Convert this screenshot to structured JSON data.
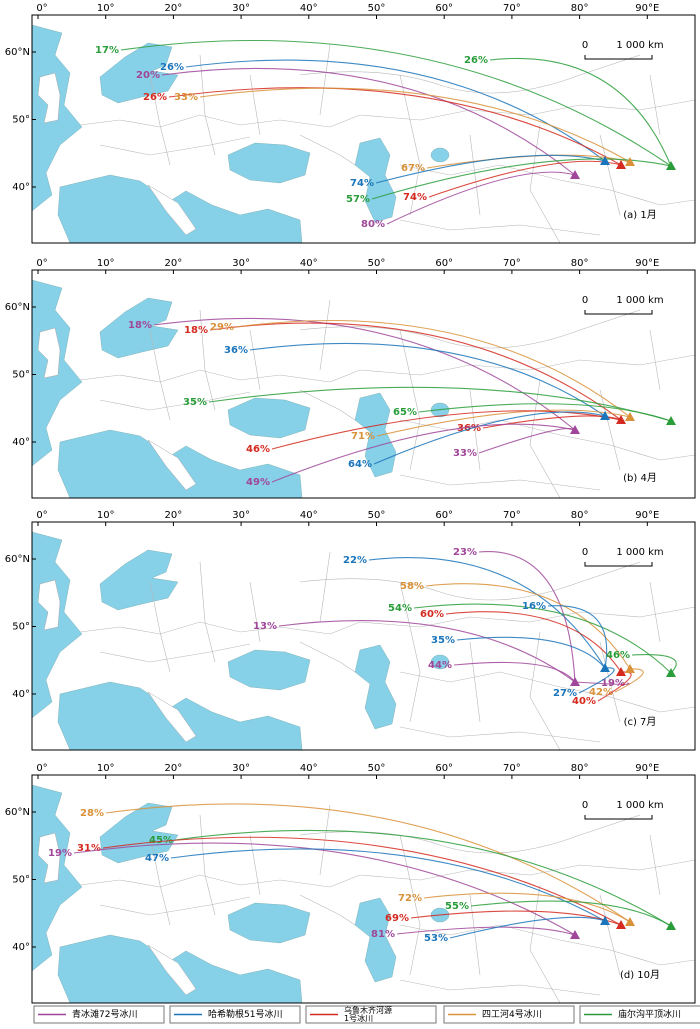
{
  "map": {
    "longitude_labels": [
      "0°",
      "10°",
      "20°",
      "30°",
      "40°",
      "50°",
      "60°",
      "70°",
      "80°",
      "90°E"
    ],
    "latitude_labels": [
      "60°N",
      "50°",
      "40°"
    ],
    "scale_bar": [
      "0",
      "1 000 km"
    ],
    "glaciers": [
      {
        "name": [
          "青冰滩72号冰川"
        ],
        "color": "#a0479a"
      },
      {
        "name": [
          "哈希勒根51号冰川"
        ],
        "color": "#1b75bb"
      },
      {
        "name": [
          "乌鲁木齐河源",
          "1号冰川"
        ],
        "color": "#d42a1f"
      },
      {
        "name": [
          "四工河4号冰川"
        ],
        "color": "#d9923a"
      },
      {
        "name": [
          "庙尔沟平顶冰川"
        ],
        "color": "#2a9d3a"
      }
    ],
    "panels": [
      {
        "label": "(a) 1月",
        "sources": [
          {
            "text": "17%",
            "glacier": 4
          },
          {
            "text": "26%",
            "glacier": 4
          },
          {
            "text": "20%",
            "glacier": 0
          },
          {
            "text": "26%",
            "glacier": 1
          },
          {
            "text": "26%",
            "glacier": 2
          },
          {
            "text": "33%",
            "glacier": 3
          },
          {
            "text": "67%",
            "glacier": 3
          },
          {
            "text": "74%",
            "glacier": 1
          },
          {
            "text": "74%",
            "glacier": 2
          },
          {
            "text": "57%",
            "glacier": 4
          },
          {
            "text": "80%",
            "glacier": 0
          }
        ]
      },
      {
        "label": "(b) 4月",
        "sources": [
          {
            "text": "18%",
            "glacier": 0
          },
          {
            "text": "18%",
            "glacier": 2
          },
          {
            "text": "29%",
            "glacier": 3
          },
          {
            "text": "36%",
            "glacier": 1
          },
          {
            "text": "35%",
            "glacier": 4
          },
          {
            "text": "65%",
            "glacier": 4
          },
          {
            "text": "71%",
            "glacier": 3
          },
          {
            "text": "46%",
            "glacier": 2
          },
          {
            "text": "36%",
            "glacier": 2
          },
          {
            "text": "64%",
            "glacier": 1
          },
          {
            "text": "33%",
            "glacier": 0
          },
          {
            "text": "49%",
            "glacier": 0
          }
        ]
      },
      {
        "label": "(c) 7月",
        "sources": [
          {
            "text": "22%",
            "glacier": 1
          },
          {
            "text": "23%",
            "glacier": 0
          },
          {
            "text": "58%",
            "glacier": 3
          },
          {
            "text": "54%",
            "glacier": 4
          },
          {
            "text": "60%",
            "glacier": 2
          },
          {
            "text": "16%",
            "glacier": 1
          },
          {
            "text": "13%",
            "glacier": 0
          },
          {
            "text": "35%",
            "glacier": 1
          },
          {
            "text": "46%",
            "glacier": 4
          },
          {
            "text": "44%",
            "glacier": 0
          },
          {
            "text": "19%",
            "glacier": 0
          },
          {
            "text": "42%",
            "glacier": 3
          },
          {
            "text": "27%",
            "glacier": 1
          },
          {
            "text": "40%",
            "glacier": 2
          }
        ]
      },
      {
        "label": "(d) 10月",
        "sources": [
          {
            "text": "28%",
            "glacier": 3
          },
          {
            "text": "45%",
            "glacier": 4
          },
          {
            "text": "31%",
            "glacier": 2
          },
          {
            "text": "19%",
            "glacier": 0
          },
          {
            "text": "47%",
            "glacier": 1
          },
          {
            "text": "72%",
            "glacier": 3
          },
          {
            "text": "55%",
            "glacier": 4
          },
          {
            "text": "69%",
            "glacier": 2
          },
          {
            "text": "81%",
            "glacier": 0
          },
          {
            "text": "53%",
            "glacier": 1
          }
        ]
      }
    ]
  }
}
